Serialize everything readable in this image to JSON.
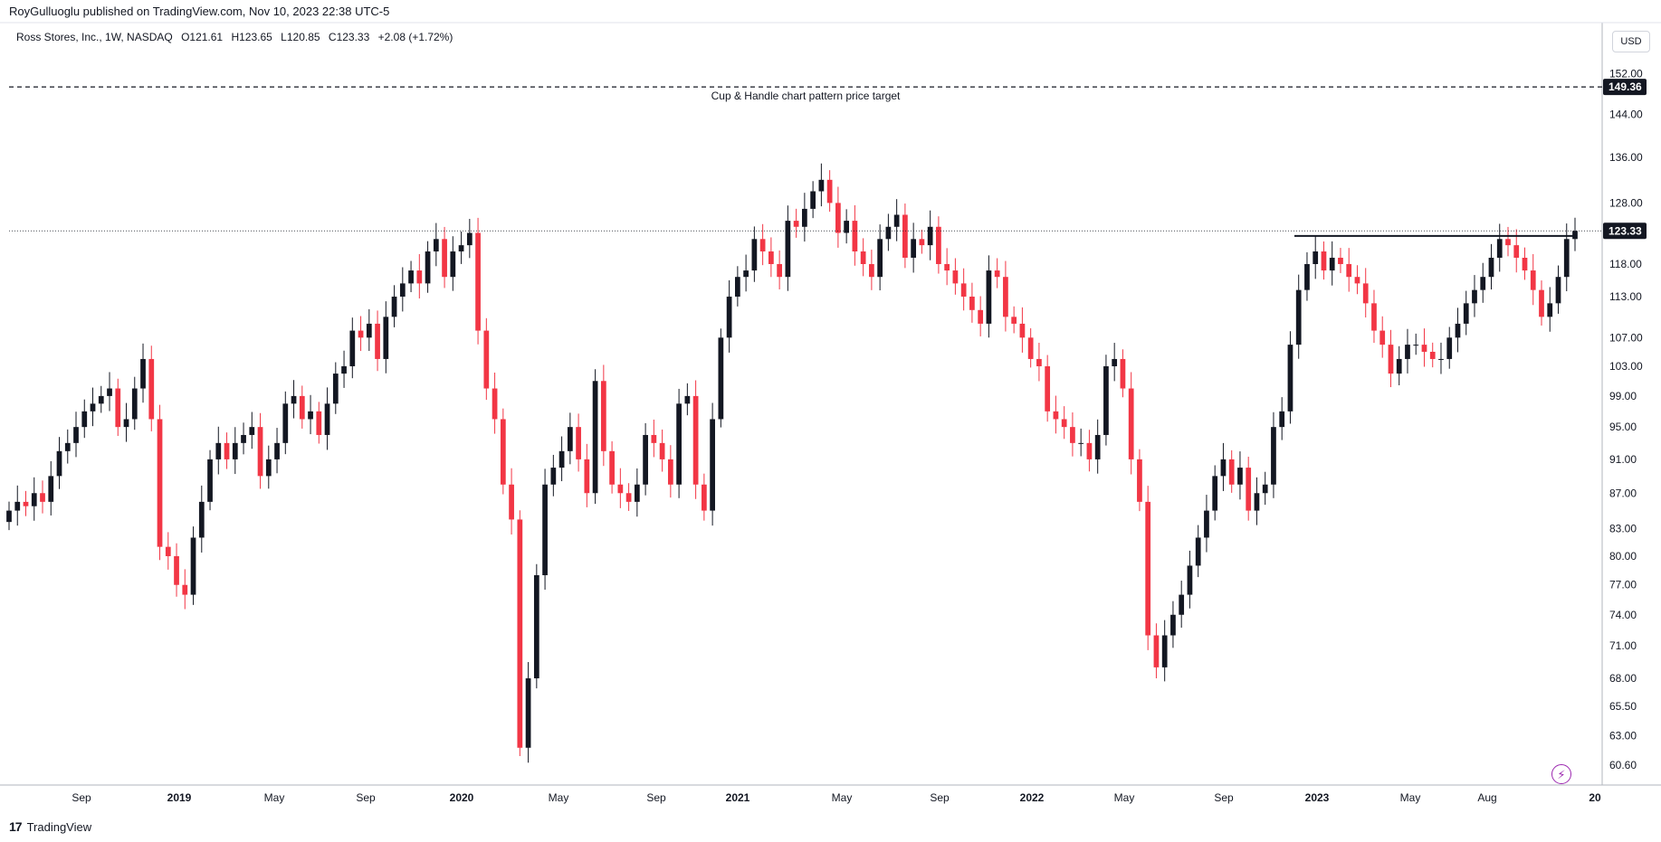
{
  "header": {
    "publish_line": "RoyGulluoglu published on TradingView.com, Nov 10, 2023 22:38 UTC-5"
  },
  "legend": {
    "symbol": "Ross Stores, Inc., 1W, NASDAQ",
    "open": "O121.61",
    "high": "H123.65",
    "low": "L120.85",
    "close": "C123.33",
    "change": "+2.08 (+1.72%)"
  },
  "currency_button": "USD",
  "footer": {
    "brand": "TradingView"
  },
  "icons": {
    "bolt": "lightning-bolt-icon",
    "logo": "tradingview-logo-icon"
  },
  "colors": {
    "up": "#131722",
    "down": "#f23645",
    "annotation": "#131722",
    "axis_text": "#131722"
  },
  "chart_data": {
    "type": "candlestick",
    "symbol": "Ross Stores, Inc.",
    "interval": "1W",
    "exchange": "NASDAQ",
    "y_axis": {
      "tick_labels": [
        "152.00",
        "144.00",
        "136.00",
        "128.00",
        "118.00",
        "113.00",
        "107.00",
        "103.00",
        "99.00",
        "95.00",
        "91.00",
        "87.00",
        "83.00",
        "80.00",
        "77.00",
        "74.00",
        "71.00",
        "68.00",
        "65.50",
        "63.00",
        "60.60"
      ],
      "range": [
        59.0,
        156.0
      ]
    },
    "x_axis": {
      "tick_labels": [
        "Sep",
        "2019",
        "May",
        "Sep",
        "2020",
        "May",
        "Sep",
        "2021",
        "May",
        "Sep",
        "2022",
        "May",
        "Sep",
        "2023",
        "May",
        "Aug",
        "20"
      ]
    },
    "last_price": {
      "label": "123.33",
      "value": 123.33
    },
    "target_price": {
      "label": "149.36",
      "value": 149.36
    },
    "annotation": "Cup & Handle chart pattern price target",
    "resistance_level": 122.5,
    "closes": [
      85,
      86,
      85.5,
      87,
      86,
      89,
      92,
      93,
      95,
      97,
      98,
      99,
      100,
      95,
      96,
      100,
      104,
      96,
      81,
      80,
      77,
      76,
      82,
      86,
      91,
      93,
      91,
      93,
      94,
      95,
      89,
      91,
      93,
      98,
      99,
      96,
      97,
      94,
      98,
      102,
      103,
      108,
      107,
      109,
      104,
      110,
      113,
      115,
      117,
      115,
      120,
      122,
      116,
      120,
      121,
      123,
      108,
      100,
      96,
      88,
      84,
      62,
      68,
      78,
      88,
      90,
      92,
      95,
      91,
      87,
      101,
      92,
      88,
      87,
      86,
      88,
      94,
      93,
      91,
      88,
      98,
      99,
      88,
      85,
      96,
      107,
      113,
      116,
      117,
      122,
      120,
      118,
      116,
      125,
      124,
      127,
      130,
      132,
      128,
      123,
      125,
      120,
      118,
      116,
      122,
      124,
      126,
      119,
      122,
      121,
      124,
      118,
      117,
      115,
      113,
      111,
      109,
      117,
      116,
      110,
      109,
      107,
      104,
      103,
      97,
      96,
      95,
      93,
      93,
      91,
      94,
      103,
      104,
      100,
      91,
      86,
      72,
      69,
      72,
      74,
      76,
      79,
      82,
      85,
      89,
      91,
      88,
      90,
      85,
      87,
      88,
      95,
      97,
      106,
      114,
      118,
      120,
      117,
      119,
      118,
      116,
      115,
      112,
      108,
      106,
      102,
      104,
      106,
      106,
      105,
      104,
      104,
      107,
      109,
      112,
      114,
      116,
      119,
      122,
      121,
      119,
      117,
      114,
      110,
      112,
      116,
      122,
      123.33
    ]
  }
}
